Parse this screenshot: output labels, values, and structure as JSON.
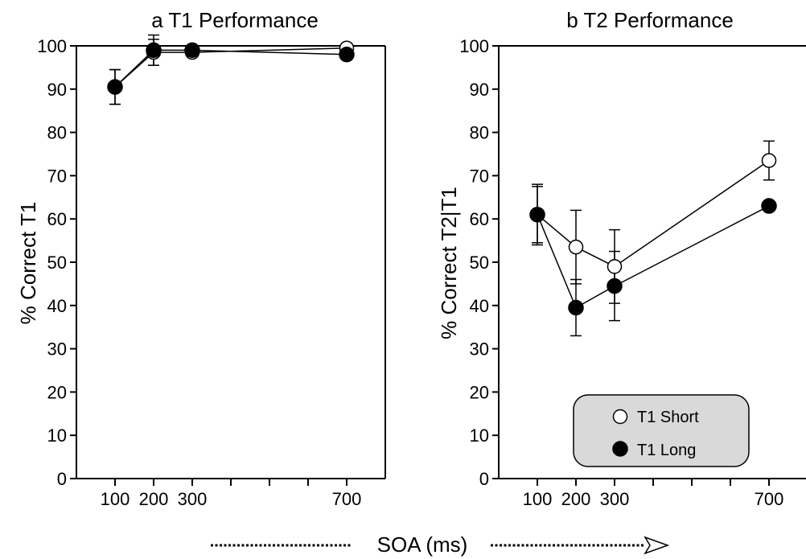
{
  "chart_data": [
    {
      "type": "line",
      "title": "a  T1 Performance",
      "ylabel": "% Correct T1",
      "x": [
        100,
        200,
        300,
        700
      ],
      "xticks": [
        100,
        200,
        300,
        700
      ],
      "xtick_labels": [
        "100",
        "200",
        "300",
        "700"
      ],
      "xlim": [
        0,
        800
      ],
      "ylim": [
        0,
        100
      ],
      "yticks": [
        0,
        10,
        20,
        30,
        40,
        50,
        60,
        70,
        80,
        90,
        100
      ],
      "grid": false,
      "series": [
        {
          "name": "T1 Short",
          "marker": "open-circle",
          "color": "#ffffff",
          "values": [
            90.5,
            98.5,
            98.5,
            99.5
          ],
          "errors": [
            4,
            3,
            0.5,
            0.5
          ]
        },
        {
          "name": "T1 Long",
          "marker": "filled-circle",
          "color": "#000000",
          "values": [
            90.5,
            99.0,
            99.0,
            98.0
          ],
          "errors": [
            4,
            3.5,
            0.5,
            0.5
          ]
        }
      ]
    },
    {
      "type": "line",
      "title": "b  T2 Performance",
      "ylabel": "% Correct T2|T1",
      "x": [
        100,
        200,
        300,
        700
      ],
      "xticks": [
        100,
        200,
        300,
        700
      ],
      "xtick_labels": [
        "100",
        "200",
        "300",
        "700"
      ],
      "xlim": [
        0,
        800
      ],
      "ylim": [
        0,
        100
      ],
      "yticks": [
        0,
        10,
        20,
        30,
        40,
        50,
        60,
        70,
        80,
        90,
        100
      ],
      "grid": false,
      "legend": {
        "position": "bottom-right",
        "entries": [
          "T1 Short",
          "T1 Long"
        ]
      },
      "series": [
        {
          "name": "T1 Short",
          "marker": "open-circle",
          "color": "#ffffff",
          "values": [
            61,
            53.5,
            49,
            73.5
          ],
          "errors": [
            6.5,
            8.5,
            8.5,
            4.5
          ]
        },
        {
          "name": "T1 Long",
          "marker": "filled-circle",
          "color": "#000000",
          "values": [
            61,
            39.5,
            44.5,
            63
          ],
          "errors": [
            7,
            6.5,
            8,
            0.5
          ]
        }
      ]
    }
  ],
  "shared_xlabel": "SOA (ms)"
}
